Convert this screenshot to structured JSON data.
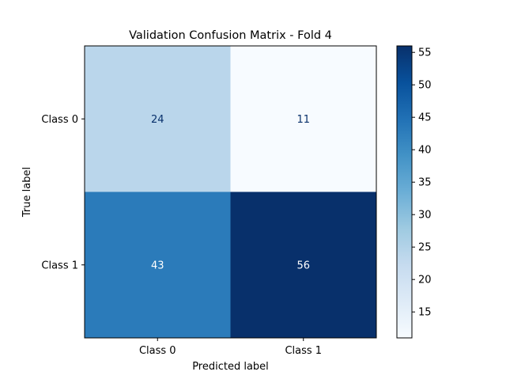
{
  "chart_data": {
    "type": "heatmap",
    "title": "Validation Confusion Matrix - Fold 4",
    "xlabel": "Predicted label",
    "ylabel": "True label",
    "x_categories": [
      "Class 0",
      "Class 1"
    ],
    "y_categories": [
      "Class 0",
      "Class 1"
    ],
    "values": [
      [
        24,
        11
      ],
      [
        43,
        56
      ]
    ],
    "colormap": "Blues",
    "color_range": [
      11,
      56
    ],
    "colorbar_ticks": [
      15,
      20,
      25,
      30,
      35,
      40,
      45,
      50,
      55
    ],
    "grid": false,
    "legend": "colorbar-right"
  }
}
